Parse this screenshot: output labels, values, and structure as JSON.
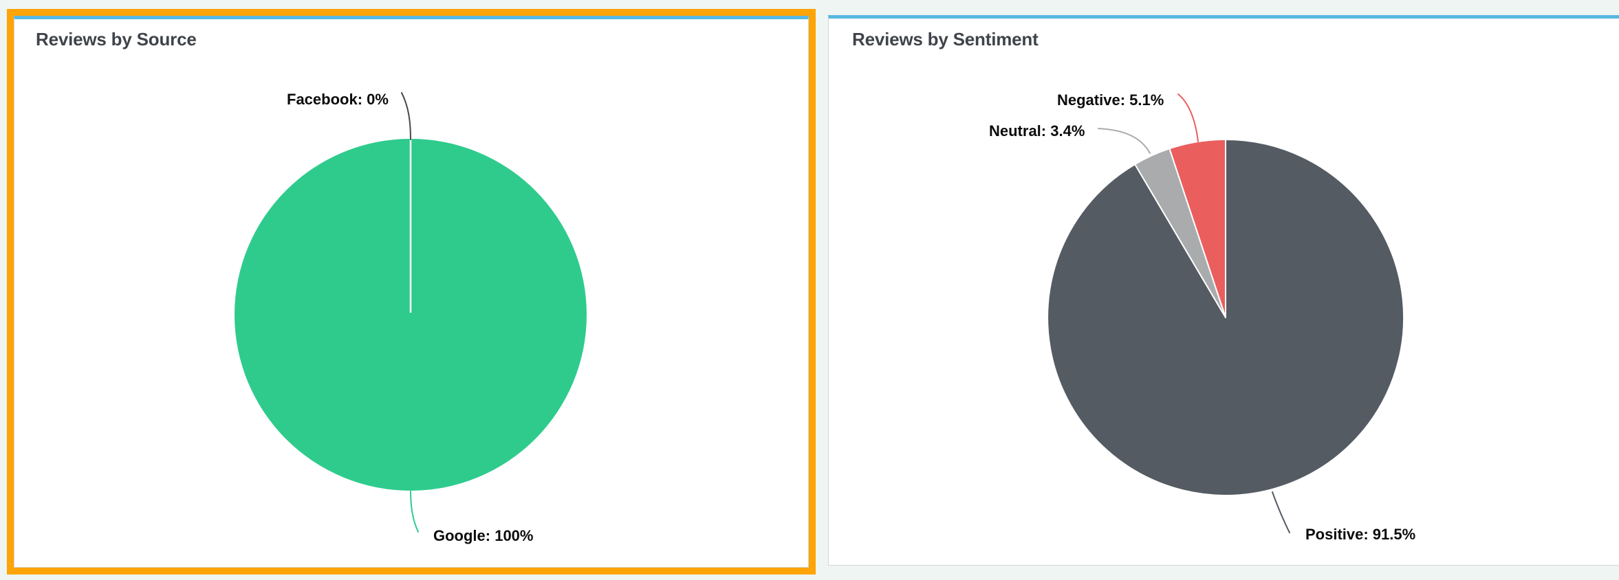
{
  "page": {
    "background_color": "#eef5f3"
  },
  "cards": [
    {
      "title": "Reviews by Source",
      "accent_top_color": "#57b8e1",
      "border_color": "#d4d6d6",
      "selected": true,
      "selection_highlight_color": "#fda408"
    },
    {
      "title": "Reviews by Sentiment",
      "accent_top_color": "#57b8e1",
      "border_color": "#d4d6d6",
      "selected": false
    }
  ],
  "chart_data": [
    {
      "type": "pie",
      "title": "Reviews by Source",
      "legend_position": "none",
      "labels_style": "outside-with-connector",
      "slices": [
        {
          "label": "Facebook",
          "value": 0,
          "display": "Facebook: 0%",
          "color": "#45494e"
        },
        {
          "label": "Google",
          "value": 100,
          "display": "Google: 100%",
          "color": "#2ecb8d"
        }
      ]
    },
    {
      "type": "pie",
      "title": "Reviews by Sentiment",
      "legend_position": "none",
      "labels_style": "outside-with-connector",
      "slices": [
        {
          "label": "Positive",
          "value": 91.5,
          "display": "Positive: 91.5%",
          "color": "#545b63"
        },
        {
          "label": "Neutral",
          "value": 3.4,
          "display": "Neutral: 3.4%",
          "color": "#a9abad"
        },
        {
          "label": "Negative",
          "value": 5.1,
          "display": "Negative: 5.1%",
          "color": "#eb5e5e"
        }
      ]
    }
  ]
}
